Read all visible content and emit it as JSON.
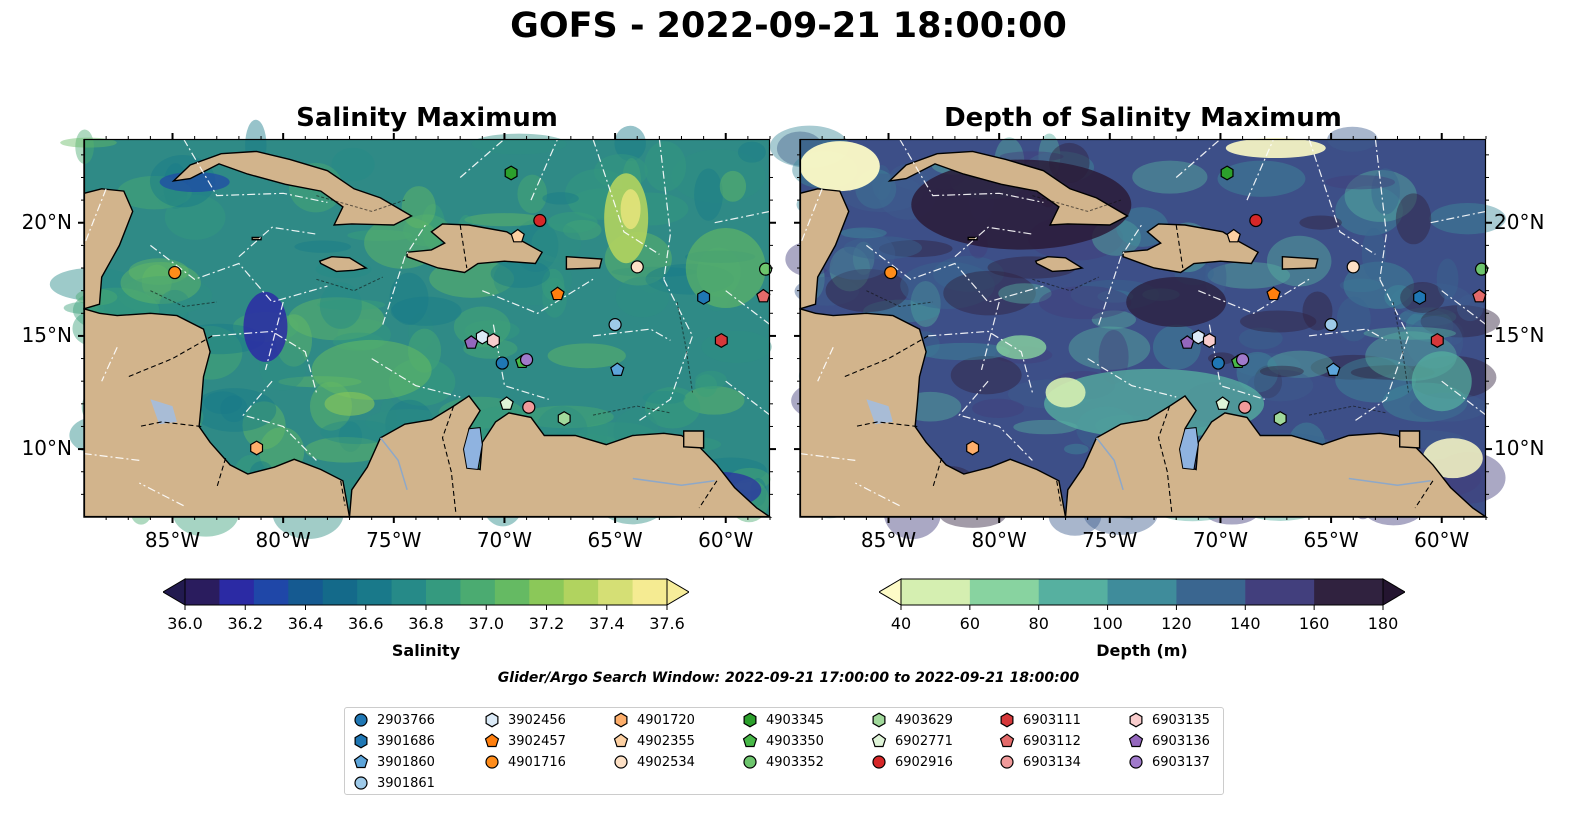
{
  "title": "GOFS - 2022-09-21 18:00:00",
  "panels": {
    "left": {
      "title": "Salinity Maximum"
    },
    "right": {
      "title": "Depth of Salinity Maximum"
    }
  },
  "axes": {
    "lon_ticks": [
      "85°W",
      "80°W",
      "75°W",
      "70°W",
      "65°W",
      "60°W"
    ],
    "lat_ticks": [
      "20°N",
      "15°N",
      "10°N"
    ],
    "lon_range": [
      -89,
      -58
    ],
    "lat_range": [
      7,
      23.7
    ]
  },
  "colorbars": {
    "salinity": {
      "label": "Salinity",
      "ticks": [
        "36.0",
        "36.2",
        "36.4",
        "36.6",
        "36.8",
        "37.0",
        "37.2",
        "37.4",
        "37.6"
      ],
      "colors": [
        "#2a1c5e",
        "#2b2aa4",
        "#1f47a8",
        "#155a91",
        "#146a8a",
        "#19798a",
        "#268a88",
        "#359a7f",
        "#4bab71",
        "#65ba63",
        "#8bc859",
        "#b1d35f",
        "#d5df75",
        "#f5eb92"
      ],
      "under": "#221a4f",
      "over": "#f7ed9a"
    },
    "depth": {
      "label": "Depth (m)",
      "ticks": [
        "40",
        "60",
        "80",
        "100",
        "120",
        "140",
        "160",
        "180"
      ],
      "colors": [
        "#d5efb1",
        "#88d3a0",
        "#56b0a0",
        "#3f8c9b",
        "#3a6690",
        "#423f7d",
        "#30223f"
      ],
      "under": "#fdfbc7",
      "over": "#241530"
    }
  },
  "search_window": "Glider/Argo Search Window: 2022-09-21 17:00:00 to 2022-09-21 18:00:00",
  "colors": {
    "land": "#d2b48c",
    "ocean_salinity": "#2f8a86",
    "ocean_depth": "#3d4f88"
  },
  "platforms": [
    {
      "id": "2903766",
      "marker": "circle",
      "color": "#1f77b4",
      "lon": -70.1,
      "lat": 13.8
    },
    {
      "id": "3901686",
      "marker": "hexagon",
      "color": "#1f77b4",
      "lon": -61.0,
      "lat": 16.7
    },
    {
      "id": "3901860",
      "marker": "pentagon",
      "color": "#5da5da",
      "lon": -64.9,
      "lat": 13.5
    },
    {
      "id": "3901861",
      "marker": "circle",
      "color": "#9ecae9",
      "lon": -65.0,
      "lat": 15.5
    },
    {
      "id": "3902456",
      "marker": "hexagon",
      "color": "#dbeaf7",
      "lon": -71.0,
      "lat": 14.95
    },
    {
      "id": "3902457",
      "marker": "pentagon",
      "color": "#ff7f0e",
      "lon": -67.6,
      "lat": 16.85
    },
    {
      "id": "4901716",
      "marker": "circle",
      "color": "#ff8c1a",
      "lon": -84.9,
      "lat": 17.8
    },
    {
      "id": "4901720",
      "marker": "hexagon",
      "color": "#fdae6b",
      "lon": -81.2,
      "lat": 10.05
    },
    {
      "id": "4902355",
      "marker": "pentagon",
      "color": "#fdd0a2",
      "lon": -69.4,
      "lat": 19.4
    },
    {
      "id": "4902534",
      "marker": "circle",
      "color": "#fde0c5",
      "lon": -64.0,
      "lat": 18.05
    },
    {
      "id": "4903345",
      "marker": "hexagon",
      "color": "#2ca02c",
      "lon": -69.7,
      "lat": 22.2
    },
    {
      "id": "4903350",
      "marker": "pentagon",
      "color": "#48b848",
      "lon": -69.2,
      "lat": 13.85
    },
    {
      "id": "4903352",
      "marker": "circle",
      "color": "#6dc56d",
      "lon": -58.2,
      "lat": 17.95
    },
    {
      "id": "4903629",
      "marker": "hexagon",
      "color": "#a1d99b",
      "lon": -67.3,
      "lat": 11.35
    },
    {
      "id": "6902771",
      "marker": "pentagon",
      "color": "#dff4d8",
      "lon": -69.9,
      "lat": 12.0
    },
    {
      "id": "6902916",
      "marker": "circle",
      "color": "#d62728",
      "lon": -68.4,
      "lat": 20.1
    },
    {
      "id": "6903111",
      "marker": "hexagon",
      "color": "#d6383a",
      "lon": -60.2,
      "lat": 14.8
    },
    {
      "id": "6903112",
      "marker": "pentagon",
      "color": "#e36a6a",
      "lon": -58.3,
      "lat": 16.75
    },
    {
      "id": "6903134",
      "marker": "circle",
      "color": "#f09a9a",
      "lon": -68.9,
      "lat": 11.85
    },
    {
      "id": "6903135",
      "marker": "hexagon",
      "color": "#f8cccc",
      "lon": -70.5,
      "lat": 14.8
    },
    {
      "id": "6903136",
      "marker": "pentagon",
      "color": "#9467bd",
      "lon": -71.5,
      "lat": 14.7
    },
    {
      "id": "6903137",
      "marker": "circle",
      "color": "#a07acb",
      "lon": -69.0,
      "lat": 13.95
    }
  ]
}
